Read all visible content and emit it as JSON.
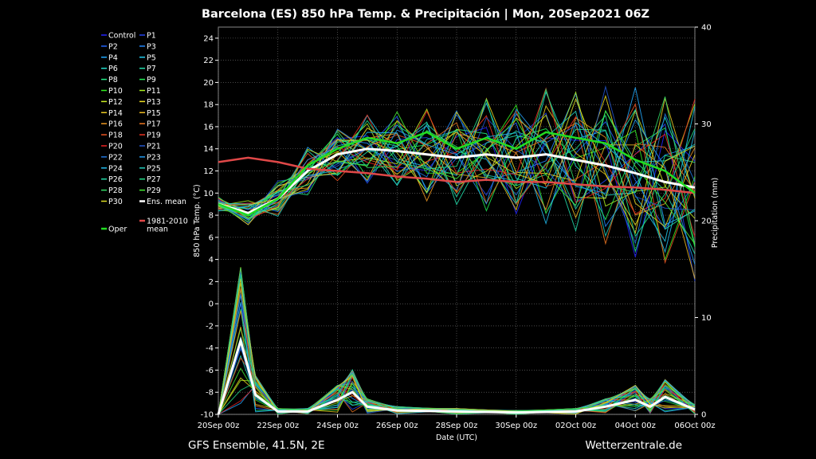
{
  "chart_data": {
    "type": "line",
    "title": "Barcelona  (ES)  850 hPa Temp. & Precipitación | Mon, 20Sep2021 06Z",
    "ylabel": "850 hPa Temp. (°C)",
    "y2label": "Precipitation (mm)",
    "xlabel": "Date (UTC)",
    "ylim": [
      -10,
      25
    ],
    "y2lim": [
      0,
      40
    ],
    "xlim": [
      "2021-09-20T00:00Z",
      "2021-10-06T00:00Z"
    ],
    "x_ticks": [
      "20Sep 00z",
      "22Sep 00z",
      "24Sep 00z",
      "26Sep 00z",
      "28Sep 00z",
      "30Sep 00z",
      "02Oct 00z",
      "04Oct 00z",
      "06Oct 00z"
    ],
    "y_ticks": [
      "24",
      "22",
      "20",
      "18",
      "16",
      "14",
      "12",
      "10",
      "8",
      "6",
      "4",
      "2",
      "0",
      "-2",
      "-4",
      "-6",
      "-8",
      "-10"
    ],
    "y2_ticks": [
      "40",
      "30",
      "20",
      "10",
      "0"
    ],
    "grid": true,
    "legend_position": "left",
    "temperature_series": [
      {
        "name": "Ens. mean",
        "color": "#ffffff",
        "x": [
          "2021-09-20T00Z",
          "2021-09-21T00Z",
          "2021-09-22T00Z",
          "2021-09-23T00Z",
          "2021-09-24T00Z",
          "2021-09-25T00Z",
          "2021-09-26T00Z",
          "2021-09-27T00Z",
          "2021-09-28T00Z",
          "2021-09-29T00Z",
          "2021-09-30T00Z",
          "2021-10-01T00Z",
          "2021-10-02T00Z",
          "2021-10-03T00Z",
          "2021-10-04T00Z",
          "2021-10-05T00Z",
          "2021-10-06T00Z"
        ],
        "values": [
          9.0,
          8.2,
          9.5,
          12.0,
          13.5,
          14.0,
          13.8,
          13.5,
          13.2,
          13.5,
          13.2,
          13.5,
          13.0,
          12.5,
          11.8,
          11.0,
          10.5
        ]
      },
      {
        "name": "1981-2010 mean",
        "color": "#e04848",
        "x": [
          "2021-09-20T00Z",
          "2021-09-21T00Z",
          "2021-09-22T00Z",
          "2021-09-23T00Z",
          "2021-09-24T00Z",
          "2021-09-25T00Z",
          "2021-09-26T00Z",
          "2021-09-27T00Z",
          "2021-09-28T00Z",
          "2021-09-29T00Z",
          "2021-09-30T00Z",
          "2021-10-01T00Z",
          "2021-10-02T00Z",
          "2021-10-03T00Z",
          "2021-10-04T00Z",
          "2021-10-05T00Z",
          "2021-10-06T00Z"
        ],
        "values": [
          12.8,
          13.2,
          12.8,
          12.2,
          12.0,
          11.8,
          11.5,
          11.3,
          11.0,
          11.2,
          11.0,
          11.0,
          10.8,
          10.6,
          10.5,
          10.3,
          10.0
        ]
      },
      {
        "name": "Oper",
        "color": "#22dd22",
        "x": [
          "2021-09-20T00Z",
          "2021-09-21T00Z",
          "2021-09-22T00Z",
          "2021-09-23T00Z",
          "2021-09-24T00Z",
          "2021-09-25T00Z",
          "2021-09-26T00Z",
          "2021-09-27T00Z",
          "2021-09-28T00Z",
          "2021-09-29T00Z",
          "2021-09-30T00Z",
          "2021-10-01T00Z",
          "2021-10-02T00Z",
          "2021-10-03T00Z",
          "2021-10-04T00Z",
          "2021-10-05T00Z",
          "2021-10-06T00Z"
        ],
        "values": [
          9.0,
          8.0,
          9.5,
          12.5,
          14.0,
          15.0,
          14.5,
          15.5,
          14.0,
          15.0,
          14.0,
          15.5,
          15.0,
          14.5,
          13.0,
          12.0,
          10.0
        ]
      }
    ],
    "precipitation_series": [
      {
        "name": "Ens. mean",
        "color": "#ffffff",
        "x": [
          "2021-09-20T00Z",
          "2021-09-20T18Z",
          "2021-09-21T06Z",
          "2021-09-22T00Z",
          "2021-09-23T00Z",
          "2021-09-24T00Z",
          "2021-09-24T12Z",
          "2021-09-25T00Z",
          "2021-09-26T00Z",
          "2021-09-28T00Z",
          "2021-09-30T00Z",
          "2021-10-02T00Z",
          "2021-10-03T00Z",
          "2021-10-04T00Z",
          "2021-10-04T12Z",
          "2021-10-05T00Z",
          "2021-10-06T00Z"
        ],
        "values": [
          0,
          7.6,
          2.0,
          0.3,
          0.3,
          1.5,
          2.3,
          0.8,
          0.4,
          0.3,
          0.2,
          0.3,
          0.8,
          1.5,
          0.8,
          1.8,
          0.5
        ]
      }
    ]
  },
  "legend": {
    "entries": [
      {
        "label": "Control",
        "color": "#2222ff"
      },
      {
        "label": "P1",
        "color": "#2244ee"
      },
      {
        "label": "P2",
        "color": "#2266ff"
      },
      {
        "label": "P3",
        "color": "#2288ff"
      },
      {
        "label": "P4",
        "color": "#22aaff"
      },
      {
        "label": "P5",
        "color": "#22ccee"
      },
      {
        "label": "P6",
        "color": "#22ddcc"
      },
      {
        "label": "P7",
        "color": "#22ddaa"
      },
      {
        "label": "P8",
        "color": "#22ee88"
      },
      {
        "label": "P9",
        "color": "#22ee55"
      },
      {
        "label": "P10",
        "color": "#33ee22"
      },
      {
        "label": "P11",
        "color": "#aaee22"
      },
      {
        "label": "P12",
        "color": "#ccee22"
      },
      {
        "label": "P13",
        "color": "#eedd22"
      },
      {
        "label": "P14",
        "color": "#eecc22"
      },
      {
        "label": "P15",
        "color": "#eebb22"
      },
      {
        "label": "P16",
        "color": "#ee9922"
      },
      {
        "label": "P17",
        "color": "#ee7722"
      },
      {
        "label": "P18",
        "color": "#ee5522"
      },
      {
        "label": "P19",
        "color": "#ee3322"
      },
      {
        "label": "P20",
        "color": "#ee2222"
      },
      {
        "label": "P21",
        "color": "#2255cc"
      },
      {
        "label": "P22",
        "color": "#2277dd"
      },
      {
        "label": "P23",
        "color": "#2299ee"
      },
      {
        "label": "P24",
        "color": "#22bbee"
      },
      {
        "label": "P25",
        "color": "#22ccbb"
      },
      {
        "label": "P26",
        "color": "#22ddaa"
      },
      {
        "label": "P27",
        "color": "#22dd88"
      },
      {
        "label": "P28",
        "color": "#33dd66"
      },
      {
        "label": "P29",
        "color": "#44ee33"
      },
      {
        "label": "P30",
        "color": "#dddd22"
      },
      {
        "label": "Ens. mean",
        "color": "#ffffff"
      },
      {
        "label": "1981-2010",
        "label2": "mean",
        "color": "#e04848"
      },
      {
        "label": "Oper",
        "color": "#22dd22"
      }
    ]
  },
  "footer": {
    "left": "GFS Ensemble, 41.5N, 2E",
    "right": "Wetterzentrale.de"
  }
}
